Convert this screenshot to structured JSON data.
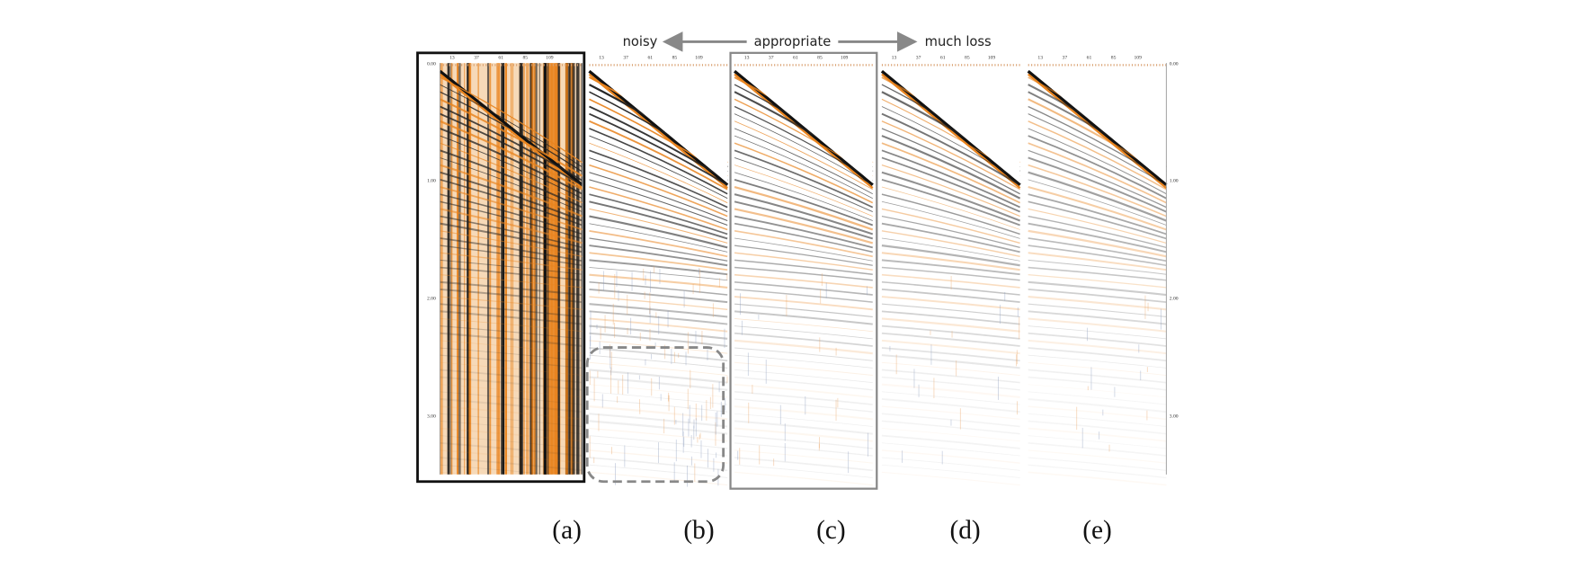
{
  "header": {
    "left": "noisy",
    "center": "appropriate",
    "right": "much loss"
  },
  "panels": [
    {
      "label": "(a)"
    },
    {
      "label": "(b)"
    },
    {
      "label": "(c)"
    },
    {
      "label": "(d)"
    },
    {
      "label": "(e)"
    }
  ],
  "axis": {
    "traces": [
      "13",
      "37",
      "61",
      "85",
      "109"
    ],
    "times": [
      "0.00",
      "1.00",
      "2.00",
      "3.00"
    ]
  }
}
